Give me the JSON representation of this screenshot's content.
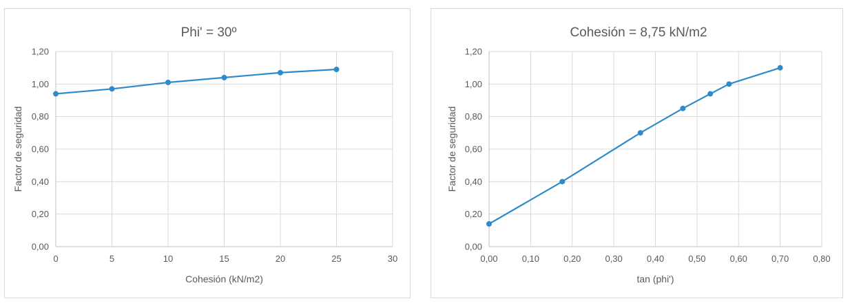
{
  "chart_data": [
    {
      "type": "line",
      "title": "Phi' = 30º",
      "xlabel": "Cohesión (kN/m2)",
      "ylabel": "Factor de seguridad",
      "xlim": [
        0,
        30
      ],
      "ylim": [
        0,
        1.2
      ],
      "x_ticks": [
        "0",
        "5",
        "10",
        "15",
        "20",
        "25",
        "30"
      ],
      "y_ticks": [
        "0,00",
        "0,20",
        "0,40",
        "0,60",
        "0,80",
        "1,00",
        "1,20"
      ],
      "grid": true,
      "color": "#2e8bc9",
      "x": [
        0,
        5,
        10,
        15,
        20,
        25
      ],
      "y": [
        0.94,
        0.97,
        1.01,
        1.04,
        1.07,
        1.09
      ]
    },
    {
      "type": "line",
      "title": "Cohesión = 8,75 kN/m2",
      "xlabel": "tan (phi')",
      "ylabel": "Factor de seguridad",
      "xlim": [
        0,
        0.8
      ],
      "ylim": [
        0,
        1.2
      ],
      "x_ticks": [
        "0,00",
        "0,10",
        "0,20",
        "0,30",
        "0,40",
        "0,50",
        "0,60",
        "0,70",
        "0,80"
      ],
      "y_ticks": [
        "0,00",
        "0,20",
        "0,40",
        "0,60",
        "0,80",
        "1,00",
        "1,20"
      ],
      "grid": true,
      "color": "#2e8bc9",
      "x": [
        0.0,
        0.176,
        0.364,
        0.466,
        0.532,
        0.577,
        0.7
      ],
      "y": [
        0.14,
        0.4,
        0.7,
        0.85,
        0.94,
        1.0,
        1.1
      ]
    }
  ]
}
